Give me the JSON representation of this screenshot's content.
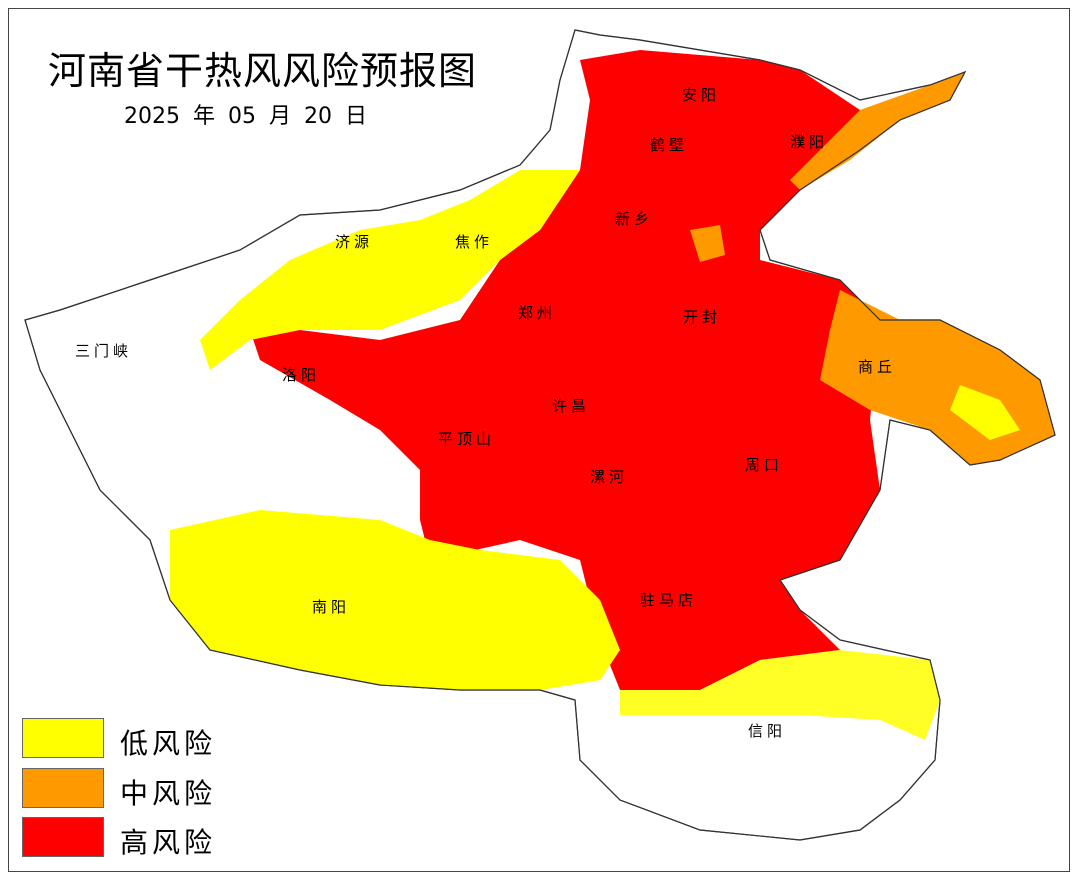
{
  "map": {
    "title": "河南省干热风风险预报图",
    "date": "2025 年 05 月 20 日",
    "cities": {
      "anyang": "安阳",
      "puyang": "濮阳",
      "hebi": "鹤壁",
      "xinxiang": "新乡",
      "jiyuan": "济源",
      "jiaozuo": "焦作",
      "zhengzhou": "郑州",
      "kaifeng": "开封",
      "sanmenxia": "三门峡",
      "luoyang": "洛阳",
      "shangqiu": "商丘",
      "xuchang": "许昌",
      "pingdingshan": "平顶山",
      "luohe": "漯河",
      "zhoukou": "周口",
      "nanyang": "南阳",
      "zhumadian": "驻马店",
      "xinyang": "信阳"
    },
    "legend": [
      {
        "label": "低风险",
        "color": "#FFFF00"
      },
      {
        "label": "中风险",
        "color": "#FF9900"
      },
      {
        "label": "高风险",
        "color": "#FF0000"
      }
    ]
  }
}
